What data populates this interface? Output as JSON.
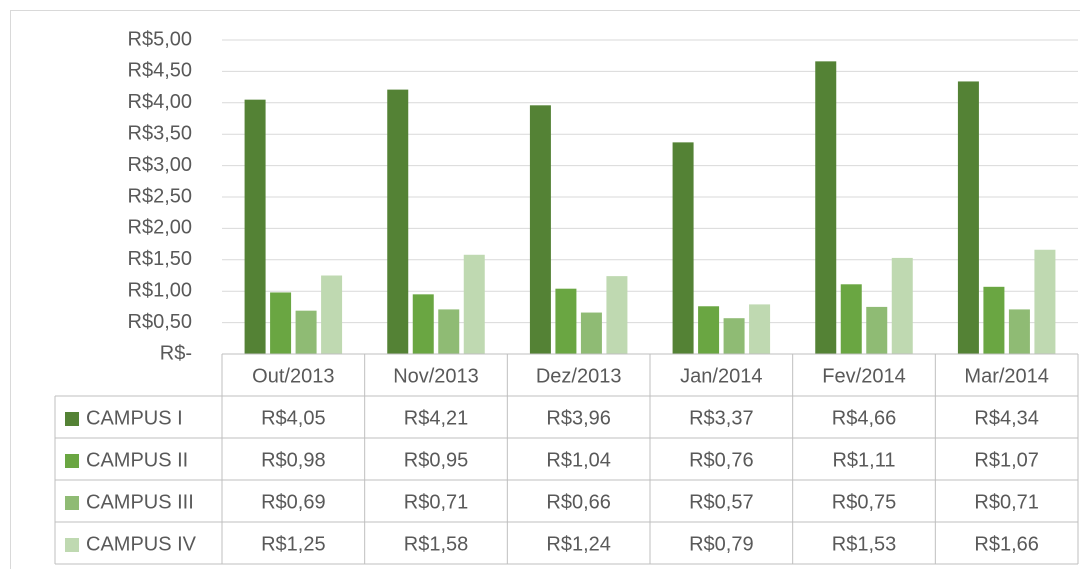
{
  "chart_data": {
    "type": "bar",
    "categories": [
      "Out/2013",
      "Nov/2013",
      "Dez/2013",
      "Jan/2014",
      "Fev/2014",
      "Mar/2014"
    ],
    "series": [
      {
        "name": "CAMPUS I",
        "color": "#548235",
        "values": [
          4.05,
          4.21,
          3.96,
          3.37,
          4.66,
          4.34
        ],
        "value_labels": [
          "R$4,05",
          "R$4,21",
          "R$3,96",
          "R$3,37",
          "R$4,66",
          "R$4,34"
        ]
      },
      {
        "name": "CAMPUS II",
        "color": "#6aa642",
        "values": [
          0.98,
          0.95,
          1.04,
          0.76,
          1.11,
          1.07
        ],
        "value_labels": [
          "R$0,98",
          "R$0,95",
          "R$1,04",
          "R$0,76",
          "R$1,11",
          "R$1,07"
        ]
      },
      {
        "name": "CAMPUS III",
        "color": "#8fbb74",
        "values": [
          0.69,
          0.71,
          0.66,
          0.57,
          0.75,
          0.71
        ],
        "value_labels": [
          "R$0,69",
          "R$0,71",
          "R$0,66",
          "R$0,57",
          "R$0,75",
          "R$0,71"
        ]
      },
      {
        "name": "CAMPUS IV",
        "color": "#bfd9b1",
        "values": [
          1.25,
          1.58,
          1.24,
          0.79,
          1.53,
          1.66
        ],
        "value_labels": [
          "R$1,25",
          "R$1,58",
          "R$1,24",
          "R$0,79",
          "R$1,53",
          "R$1,66"
        ]
      }
    ],
    "ylim": [
      0,
      5
    ],
    "yticks": [
      {
        "value": 0,
        "label": "R$-"
      },
      {
        "value": 0.5,
        "label": "R$0,50"
      },
      {
        "value": 1,
        "label": "R$1,00"
      },
      {
        "value": 1.5,
        "label": "R$1,50"
      },
      {
        "value": 2,
        "label": "R$2,00"
      },
      {
        "value": 2.5,
        "label": "R$2,50"
      },
      {
        "value": 3,
        "label": "R$3,00"
      },
      {
        "value": 3.5,
        "label": "R$3,50"
      },
      {
        "value": 4,
        "label": "R$4,00"
      },
      {
        "value": 4.5,
        "label": "R$4,50"
      },
      {
        "value": 5,
        "label": "R$5,00"
      }
    ],
    "grid": true
  }
}
